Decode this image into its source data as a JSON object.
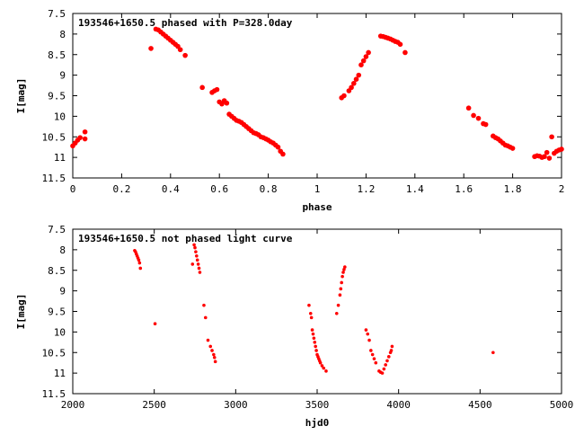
{
  "chart_data": [
    {
      "type": "scatter",
      "title": "193546+1650.5 phased with P=328.0day",
      "xlabel": "phase",
      "ylabel": "I[mag]",
      "xlim": [
        0,
        2
      ],
      "ylim": [
        11.5,
        7.5
      ],
      "y_inverted": true,
      "grid": false,
      "xticks": [
        "0",
        "0.2",
        "0.4",
        "0.6",
        "0.8",
        "1",
        "1.2",
        "1.4",
        "1.6",
        "1.8",
        "2"
      ],
      "yticks": [
        "7.5",
        "8",
        "8.5",
        "9",
        "9.5",
        "10",
        "10.5",
        "11",
        "11.5"
      ],
      "marker": "filled-circle",
      "color": "#ff0000",
      "series": [
        {
          "x": [
            0.0,
            0.01,
            0.02,
            0.03,
            0.05,
            0.05,
            0.32,
            0.34,
            0.35,
            0.36,
            0.37,
            0.38,
            0.39,
            0.4,
            0.41,
            0.42,
            0.43,
            0.44,
            0.46,
            0.53,
            0.57,
            0.58,
            0.59,
            0.6,
            0.61,
            0.62,
            0.63,
            0.64,
            0.65,
            0.66,
            0.67,
            0.68,
            0.69,
            0.7,
            0.71,
            0.72,
            0.73,
            0.74,
            0.75,
            0.76,
            0.77,
            0.78,
            0.79,
            0.8,
            0.81,
            0.82,
            0.83,
            0.84,
            0.85,
            0.86,
            1.1,
            1.11,
            1.13,
            1.14,
            1.15,
            1.16,
            1.17,
            1.18,
            1.19,
            1.2,
            1.21,
            1.26,
            1.27,
            1.28,
            1.29,
            1.3,
            1.31,
            1.32,
            1.33,
            1.34,
            1.36,
            1.62,
            1.64,
            1.66,
            1.68,
            1.69,
            1.72,
            1.73,
            1.74,
            1.75,
            1.76,
            1.77,
            1.78,
            1.79,
            1.8,
            1.89,
            1.9,
            1.91,
            1.92,
            1.93,
            1.94,
            1.95,
            1.96,
            1.97,
            1.98,
            1.99,
            2.0
          ],
          "y": [
            10.72,
            10.65,
            10.58,
            10.52,
            10.55,
            10.38,
            8.35,
            7.88,
            7.9,
            7.95,
            8.0,
            8.05,
            8.1,
            8.15,
            8.2,
            8.25,
            8.3,
            8.38,
            8.52,
            9.3,
            9.42,
            9.38,
            9.35,
            9.65,
            9.7,
            9.62,
            9.68,
            9.95,
            10.0,
            10.05,
            10.1,
            10.12,
            10.15,
            10.2,
            10.25,
            10.3,
            10.35,
            10.4,
            10.42,
            10.45,
            10.5,
            10.52,
            10.55,
            10.58,
            10.62,
            10.65,
            10.7,
            10.75,
            10.85,
            10.92,
            9.55,
            9.5,
            9.38,
            9.3,
            9.2,
            9.1,
            9.0,
            8.75,
            8.65,
            8.55,
            8.45,
            8.05,
            8.06,
            8.08,
            8.1,
            8.12,
            8.15,
            8.18,
            8.2,
            8.25,
            8.45,
            9.8,
            9.98,
            10.05,
            10.18,
            10.2,
            10.48,
            10.52,
            10.55,
            10.6,
            10.65,
            10.7,
            10.72,
            10.75,
            10.78,
            10.98,
            10.96,
            10.97,
            11.0,
            10.98,
            10.88,
            11.02,
            10.5,
            10.9,
            10.85,
            10.82,
            10.8
          ]
        }
      ]
    },
    {
      "type": "scatter",
      "title": "193546+1650.5 not phased light curve",
      "xlabel": "hjd0",
      "ylabel": "I[mag]",
      "xlim": [
        2000,
        5000
      ],
      "ylim": [
        11.5,
        7.5
      ],
      "y_inverted": true,
      "grid": false,
      "xticks": [
        "2000",
        "2500",
        "3000",
        "3500",
        "4000",
        "4500",
        "5000"
      ],
      "yticks": [
        "7.5",
        "8",
        "8.5",
        "9",
        "9.5",
        "10",
        "10.5",
        "11",
        "11.5"
      ],
      "marker": "small-dot",
      "color": "#ff0000",
      "series": [
        {
          "x": [
            2380,
            2385,
            2390,
            2395,
            2400,
            2405,
            2410,
            2415,
            2505,
            2735,
            2745,
            2750,
            2755,
            2760,
            2765,
            2770,
            2775,
            2780,
            2805,
            2815,
            2830,
            2845,
            2855,
            2865,
            2870,
            2875,
            3450,
            3460,
            3465,
            3470,
            3475,
            3480,
            3485,
            3490,
            3495,
            3500,
            3505,
            3510,
            3515,
            3520,
            3530,
            3540,
            3555,
            3620,
            3630,
            3640,
            3645,
            3650,
            3655,
            3660,
            3665,
            3670,
            3800,
            3810,
            3820,
            3830,
            3840,
            3850,
            3860,
            3880,
            3890,
            3900,
            3910,
            3920,
            3930,
            3940,
            3950,
            3955,
            3960,
            4580
          ],
          "y": [
            8.02,
            8.05,
            8.1,
            8.15,
            8.2,
            8.25,
            8.32,
            8.45,
            9.8,
            8.35,
            7.88,
            7.95,
            8.05,
            8.15,
            8.25,
            8.35,
            8.45,
            8.55,
            9.35,
            9.65,
            10.2,
            10.35,
            10.45,
            10.55,
            10.62,
            10.72,
            9.35,
            9.55,
            9.65,
            9.95,
            10.05,
            10.15,
            10.25,
            10.35,
            10.45,
            10.55,
            10.6,
            10.65,
            10.7,
            10.75,
            10.82,
            10.88,
            10.95,
            9.55,
            9.35,
            9.1,
            8.95,
            8.8,
            8.65,
            8.55,
            8.48,
            8.42,
            9.95,
            10.05,
            10.2,
            10.45,
            10.55,
            10.65,
            10.75,
            10.95,
            10.98,
            11.0,
            10.9,
            10.8,
            10.7,
            10.6,
            10.5,
            10.45,
            10.35,
            10.5
          ]
        }
      ]
    }
  ]
}
